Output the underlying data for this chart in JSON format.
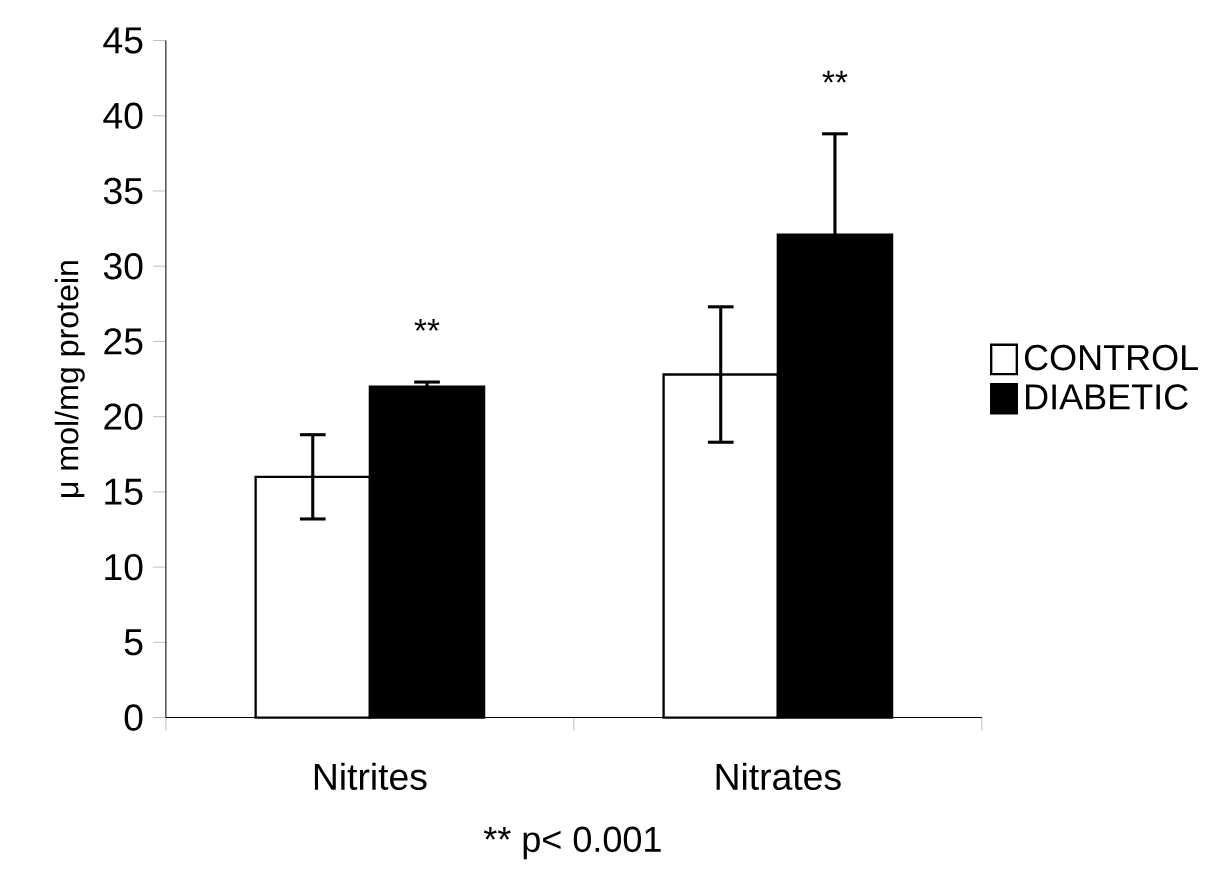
{
  "chart_data": {
    "type": "bar",
    "ylabel": "μ mol/mg protein",
    "categories": [
      "Nitrites",
      "Nitrates"
    ],
    "series": [
      {
        "name": "CONTROL",
        "color": "#ffffff",
        "values": [
          16.0,
          22.8
        ],
        "errors": [
          2.8,
          4.5
        ]
      },
      {
        "name": "DIABETIC",
        "color": "#000000",
        "values": [
          22.0,
          32.1
        ],
        "errors": [
          0.3,
          6.7
        ]
      }
    ],
    "ylim": [
      0,
      45
    ],
    "yticks": [
      0,
      5,
      10,
      15,
      20,
      25,
      30,
      35,
      40,
      45
    ],
    "legend": "right",
    "grid": false,
    "annotations": [
      "**",
      "**",
      "** p< 0.001"
    ]
  }
}
